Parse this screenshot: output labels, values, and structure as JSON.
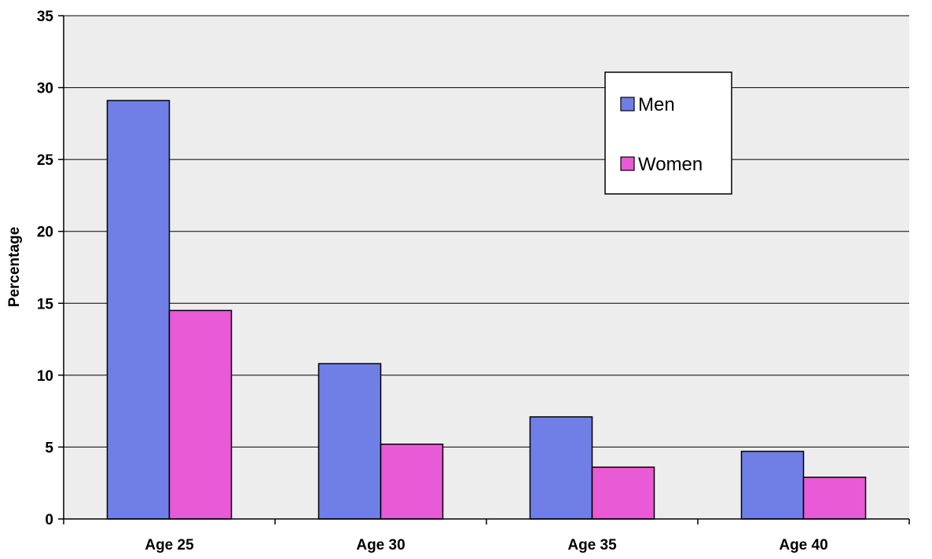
{
  "chart_data": {
    "type": "bar",
    "title": "",
    "xlabel": "",
    "ylabel": "Percentage",
    "categories": [
      "Age 25",
      "Age 30",
      "Age 35",
      "Age 40"
    ],
    "series": [
      {
        "name": "Men",
        "values": [
          29.1,
          10.8,
          7.1,
          4.7
        ]
      },
      {
        "name": "Women",
        "values": [
          14.5,
          5.2,
          3.6,
          2.9
        ]
      }
    ],
    "ylim": [
      0,
      35
    ],
    "yticks": [
      0,
      5,
      10,
      15,
      20,
      25,
      30,
      35
    ],
    "grid": true,
    "legend_position": "top-right",
    "colors": {
      "Men": "#6f7fe6",
      "Women": "#e85ad6",
      "plot_area": "#ededed",
      "gridline": "#000000"
    }
  }
}
